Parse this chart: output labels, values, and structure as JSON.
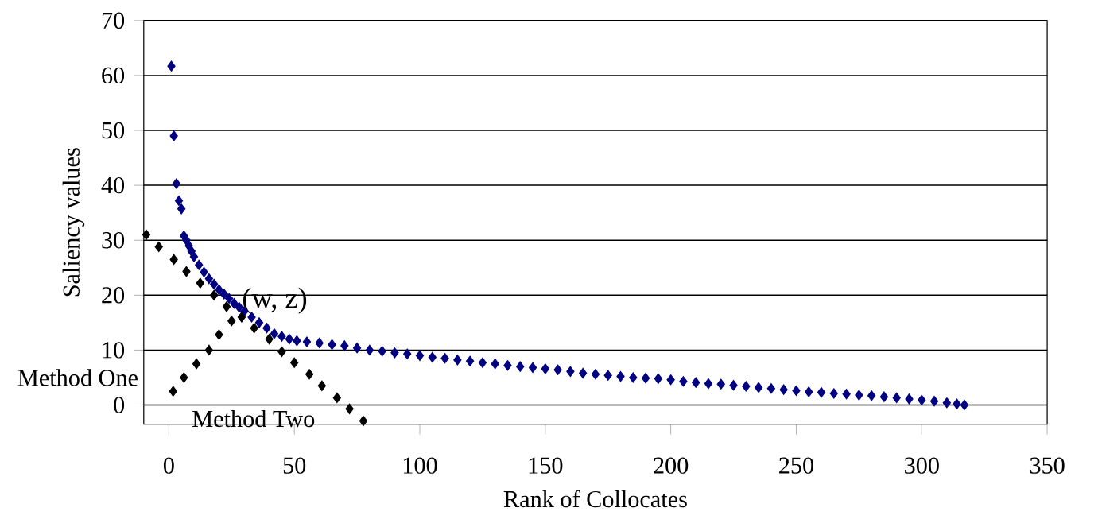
{
  "chart_data": {
    "type": "scatter",
    "xlabel": "Rank of Collocates",
    "ylabel": "Saliency values",
    "xlim": [
      -10,
      350
    ],
    "ylim": [
      -3.5,
      70
    ],
    "xticks": [
      0,
      50,
      100,
      150,
      200,
      250,
      300,
      350
    ],
    "yticks": [
      0,
      10,
      20,
      30,
      40,
      50,
      60,
      70
    ],
    "grid": "y",
    "marker": "diamond",
    "series": [
      {
        "color": "#000080",
        "x": [
          1,
          2,
          3,
          4,
          5,
          6,
          7,
          8,
          9,
          10,
          12,
          14,
          16,
          18,
          20,
          22,
          24,
          26,
          28,
          30,
          33,
          36,
          39,
          42,
          45,
          48,
          51,
          55,
          60,
          65,
          70,
          75,
          80,
          85,
          90,
          95,
          100,
          105,
          110,
          115,
          120,
          125,
          130,
          135,
          140,
          145,
          150,
          155,
          160,
          165,
          170,
          175,
          180,
          185,
          190,
          195,
          200,
          205,
          210,
          215,
          220,
          225,
          230,
          235,
          240,
          245,
          250,
          255,
          260,
          265,
          270,
          275,
          280,
          285,
          290,
          295,
          300,
          305,
          310,
          314,
          317
        ],
        "values": [
          61.7,
          49,
          40.3,
          37.2,
          35.7,
          30.8,
          30,
          29,
          28,
          27,
          25.5,
          24.2,
          23,
          22,
          21,
          20.2,
          19.4,
          18.5,
          17.8,
          17,
          16,
          15,
          14,
          13,
          12.5,
          12,
          11.7,
          11.5,
          11.3,
          11,
          10.8,
          10.4,
          10,
          9.8,
          9.5,
          9.3,
          9,
          8.7,
          8.5,
          8.2,
          8,
          7.7,
          7.5,
          7.2,
          7,
          6.8,
          6.6,
          6.4,
          6.1,
          5.8,
          5.6,
          5.4,
          5.2,
          5,
          4.9,
          4.8,
          4.6,
          4.3,
          4.1,
          3.9,
          3.8,
          3.6,
          3.4,
          3.2,
          3,
          2.8,
          2.6,
          2.4,
          2.3,
          2.1,
          2,
          1.8,
          1.7,
          1.5,
          1.3,
          1.1,
          0.9,
          0.7,
          0.4,
          0.2,
          0
        ]
      },
      {
        "color": "#000000",
        "x": [
          1.7,
          6,
          11,
          16,
          20,
          25
        ],
        "values": [
          2.5,
          5,
          7.5,
          10,
          12.8,
          15.3
        ]
      },
      {
        "color": "#000000",
        "x": [
          -9,
          -4,
          2,
          7,
          12.5,
          18,
          23,
          29,
          34,
          40,
          45,
          50,
          56,
          61,
          67,
          72,
          77.5
        ],
        "values": [
          31,
          28.8,
          26.5,
          24.3,
          22.2,
          20,
          17.9,
          16,
          14,
          12,
          9.7,
          7.7,
          5.6,
          3.5,
          1.3,
          -0.7,
          -2.9
        ]
      }
    ],
    "annotations": [
      {
        "text": "(w, z)",
        "x": 28,
        "y": 19
      },
      "Method One",
      "Method Two"
    ]
  }
}
